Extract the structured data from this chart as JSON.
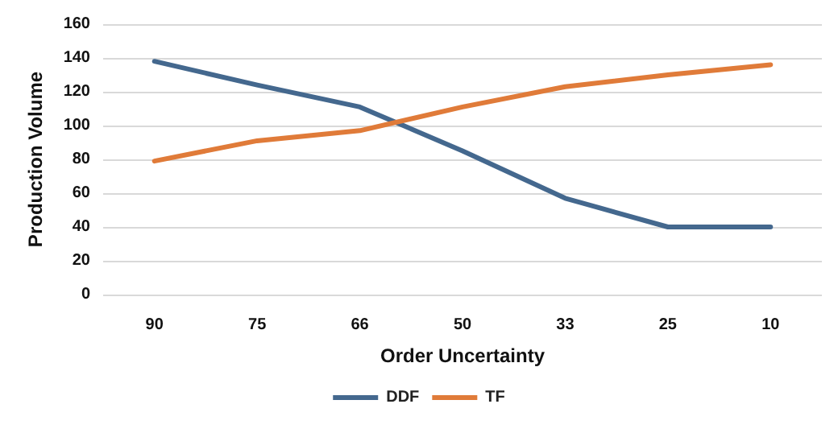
{
  "chart_data": {
    "type": "line",
    "xlabel": "Order Uncertainty",
    "ylabel": "Production Volume",
    "categories": [
      "90",
      "75",
      "66",
      "50",
      "33",
      "25",
      "10"
    ],
    "series": [
      {
        "name": "DDF",
        "color": "#44688e",
        "values": [
          138,
          124,
          111,
          85,
          57,
          40,
          40
        ]
      },
      {
        "name": "TF",
        "color": "#e07b39",
        "values": [
          79,
          91,
          97,
          111,
          123,
          130,
          136
        ]
      }
    ],
    "ylim": [
      0,
      160
    ],
    "yticks": [
      0,
      20,
      40,
      60,
      80,
      100,
      120,
      140,
      160
    ],
    "grid": "y",
    "legend": "bottom",
    "marker": "none",
    "line_style": "solid"
  }
}
